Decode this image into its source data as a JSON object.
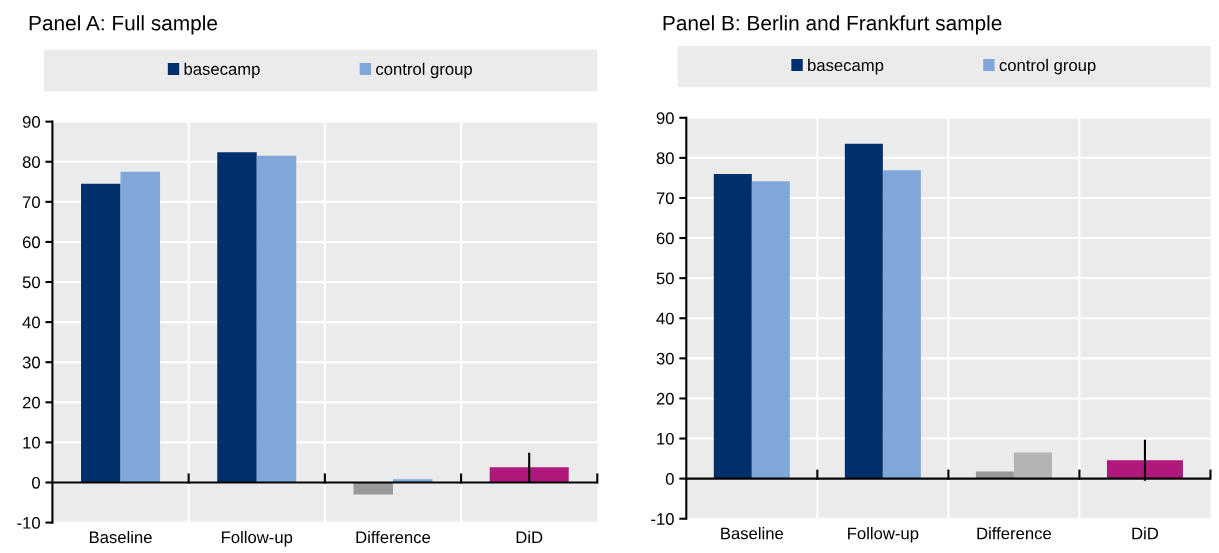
{
  "chart_data": [
    {
      "type": "bar",
      "title": "Panel A: Full sample",
      "categories": [
        "Baseline",
        "Follow-up",
        "Difference",
        "DiD"
      ],
      "series": [
        {
          "name": "basecamp",
          "color": "#002f6c",
          "colors": [
            "#002f6c",
            "#002f6c",
            "#999999",
            null
          ],
          "values": [
            74.5,
            82.4,
            -3.0,
            null
          ]
        },
        {
          "name": "control group",
          "color": "#7fa8d8",
          "colors": [
            "#7fa8d8",
            "#7fa8d8",
            "#7fa8d8",
            null
          ],
          "values": [
            77.5,
            81.5,
            0.8,
            null
          ]
        },
        {
          "color": "#b0187b",
          "values": [
            null,
            null,
            null,
            3.8
          ],
          "errors": [
            null,
            null,
            null,
            3.6
          ]
        }
      ],
      "ylim": [
        -10,
        90
      ],
      "yticks": [
        -10,
        0,
        10,
        20,
        30,
        40,
        50,
        60,
        70,
        80,
        90
      ],
      "grid": true,
      "legend": "top"
    },
    {
      "type": "bar",
      "title": "Panel B: Berlin and Frankfurt sample",
      "categories": [
        "Baseline",
        "Follow-up",
        "Difference",
        "DiD"
      ],
      "series": [
        {
          "name": "basecamp",
          "color": "#002f6c",
          "colors": [
            "#002f6c",
            "#002f6c",
            "#999999",
            null
          ],
          "values": [
            76.0,
            83.5,
            1.8,
            null
          ]
        },
        {
          "name": "control group",
          "color": "#7fa8d8",
          "colors": [
            "#7fa8d8",
            "#7fa8d8",
            "#b3b3b3",
            null
          ],
          "values": [
            74.2,
            76.9,
            6.5,
            null
          ]
        },
        {
          "color": "#b0187b",
          "values": [
            null,
            null,
            null,
            4.6
          ],
          "errors": [
            null,
            null,
            null,
            5.1
          ]
        }
      ],
      "ylim": [
        -10,
        90
      ],
      "yticks": [
        -10,
        0,
        10,
        20,
        30,
        40,
        50,
        60,
        70,
        80,
        90
      ],
      "grid": true,
      "legend": "top"
    }
  ]
}
